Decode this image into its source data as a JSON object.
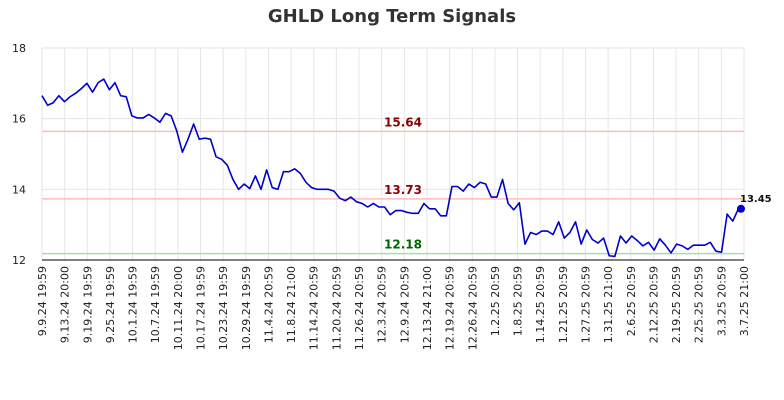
{
  "chart_data": {
    "type": "line",
    "title": "GHLD Long Term Signals",
    "xlabel": "",
    "ylabel": "",
    "ylim": [
      12,
      18
    ],
    "yticks": [
      12,
      14,
      16,
      18
    ],
    "grid": true,
    "xticks": [
      "9.9.24 19:59",
      "9.13.24 20:00",
      "9.19.24 19:59",
      "9.25.24 19:59",
      "10.1.24 19:59",
      "10.7.24 19:59",
      "10.11.24 20:00",
      "10.17.24 19:59",
      "10.23.24 19:59",
      "10.29.24 19:59",
      "11.4.24 20:59",
      "11.8.24 21:00",
      "11.14.24 20:59",
      "11.20.24 20:59",
      "11.26.24 20:59",
      "12.3.24 20:59",
      "12.9.24 20:59",
      "12.13.24 21:00",
      "12.19.24 20:59",
      "12.26.24 20:59",
      "1.2.25 20:59",
      "1.8.25 20:59",
      "1.14.25 20:59",
      "1.21.25 20:59",
      "1.27.25 20:59",
      "1.31.25 21:00",
      "2.6.25 20:59",
      "2.12.25 20:59",
      "2.19.25 20:59",
      "2.25.25 20:59",
      "3.3.25 20:59",
      "3.7.25 21:00"
    ],
    "reference_lines": [
      {
        "value": 15.64,
        "label": "15.64",
        "line_color": "#ffbbbb",
        "label_color": "#8b0000"
      },
      {
        "value": 13.73,
        "label": "13.73",
        "line_color": "#ffbbbb",
        "label_color": "#8b0000"
      },
      {
        "value": 12.18,
        "label": "12.18",
        "line_color": "#aaddaa",
        "label_color": "#006400"
      }
    ],
    "last_value": {
      "value": 13.45,
      "label": "13.45"
    },
    "series": [
      {
        "color": "#0000cc",
        "values": [
          16.65,
          16.38,
          16.45,
          16.65,
          16.48,
          16.62,
          16.72,
          16.85,
          17.0,
          16.75,
          17.02,
          17.12,
          16.82,
          17.02,
          16.65,
          16.62,
          16.08,
          16.02,
          16.02,
          16.12,
          16.02,
          15.9,
          16.15,
          16.08,
          15.65,
          15.05,
          15.42,
          15.85,
          15.42,
          15.45,
          15.42,
          14.92,
          14.85,
          14.68,
          14.28,
          14.0,
          14.15,
          14.02,
          14.38,
          14.0,
          14.55,
          14.05,
          14.0,
          14.5,
          14.5,
          14.58,
          14.45,
          14.2,
          14.05,
          14.0,
          14.0,
          14.0,
          13.95,
          13.75,
          13.68,
          13.78,
          13.65,
          13.6,
          13.5,
          13.6,
          13.5,
          13.5,
          13.28,
          13.4,
          13.4,
          13.35,
          13.32,
          13.32,
          13.6,
          13.45,
          13.45,
          13.25,
          13.25,
          14.08,
          14.08,
          13.95,
          14.15,
          14.05,
          14.2,
          14.15,
          13.78,
          13.78,
          14.28,
          13.6,
          13.42,
          13.62,
          12.45,
          12.78,
          12.72,
          12.82,
          12.82,
          12.72,
          13.08,
          12.62,
          12.78,
          13.08,
          12.45,
          12.85,
          12.58,
          12.48,
          12.62,
          12.12,
          12.1,
          12.68,
          12.48,
          12.68,
          12.55,
          12.4,
          12.5,
          12.28,
          12.6,
          12.42,
          12.2,
          12.45,
          12.4,
          12.3,
          12.42,
          12.42,
          12.42,
          12.5,
          12.25,
          12.22,
          13.3,
          13.1,
          13.45,
          13.45
        ]
      }
    ]
  }
}
